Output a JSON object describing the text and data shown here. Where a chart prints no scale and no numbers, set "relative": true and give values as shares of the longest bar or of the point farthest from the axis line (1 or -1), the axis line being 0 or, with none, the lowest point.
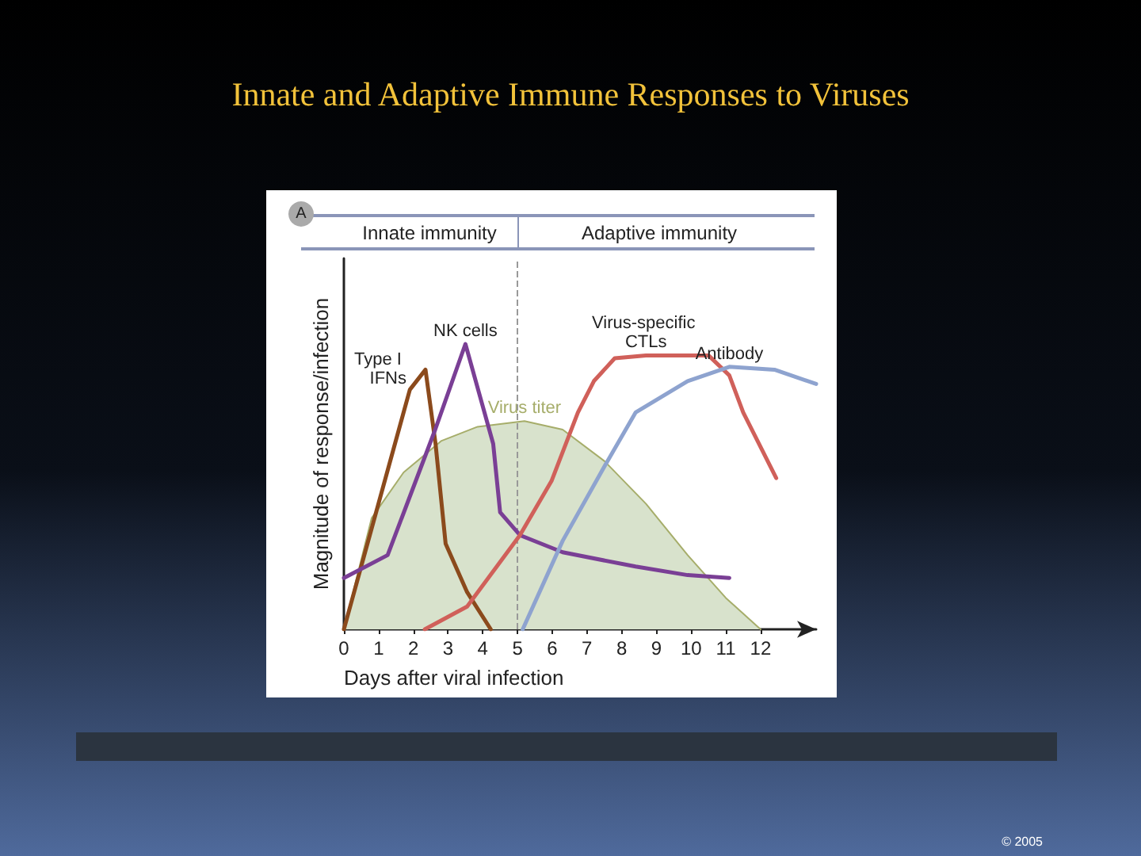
{
  "chart_data": {
    "type": "line",
    "title": "Innate and Adaptive Immune Responses to Viruses",
    "xlabel": "Days after viral infection",
    "ylabel": "Magnitude of response/infection",
    "relative": true,
    "xlim": [
      0,
      13.6
    ],
    "xticks": [
      0,
      1,
      2,
      3,
      4,
      5,
      6,
      7,
      8,
      9,
      10,
      11,
      12
    ],
    "grid": false,
    "legend": false,
    "marker": "none",
    "line_style": "solid",
    "annotations": [
      "A",
      "Innate immunity",
      "Adaptive immunity",
      "© 2005"
    ],
    "ref_lines": [
      {
        "axis": "x",
        "value": 5,
        "label": null,
        "color": "#999999",
        "line_style": "dashed"
      }
    ],
    "series": [
      {
        "name": "Virus titer",
        "type": "area",
        "color": "#a6ad6a",
        "x": [
          0,
          0.8,
          1.72,
          2.8,
          3.85,
          5.2,
          6.3,
          7.5,
          8.7,
          9.9,
          11.0,
          12.0
        ],
        "values": [
          0,
          0.39,
          0.55,
          0.66,
          0.71,
          0.73,
          0.7,
          0.59,
          0.44,
          0.26,
          0.11,
          0
        ]
      },
      {
        "name": "Type I IFNs",
        "color": "#8b4a1c",
        "x": [
          0,
          1.9,
          2.35,
          2.64,
          2.93,
          3.55,
          4.23
        ],
        "values": [
          0,
          0.84,
          0.91,
          0.65,
          0.3,
          0.13,
          0
        ]
      },
      {
        "name": "NK cells",
        "color": "#7a3f95",
        "x": [
          0,
          1.26,
          2.63,
          3.5,
          4.3,
          4.5,
          5.07,
          6.3,
          8.4,
          9.9,
          11.1
        ],
        "values": [
          0.18,
          0.26,
          0.7,
          1,
          0.65,
          0.41,
          0.33,
          0.27,
          0.22,
          0.19,
          0.18
        ]
      },
      {
        "name": "Virus-specific CTLs",
        "color": "#d0605a",
        "x": [
          2.33,
          3.55,
          5.07,
          5.98,
          6.74,
          7.2,
          7.8,
          8.7,
          10.5,
          11.1,
          11.5,
          12.45
        ],
        "values": [
          0,
          0.08,
          0.33,
          0.52,
          0.76,
          0.87,
          0.95,
          0.96,
          0.96,
          0.89,
          0.76,
          0.53
        ]
      },
      {
        "name": "Antibody",
        "color": "#8ea3cf",
        "x": [
          5.15,
          6.3,
          7.5,
          8.4,
          9.9,
          11.1,
          12.4,
          13.6
        ],
        "values": [
          0,
          0.31,
          0.57,
          0.76,
          0.87,
          0.92,
          0.91,
          0.86
        ]
      }
    ]
  }
}
